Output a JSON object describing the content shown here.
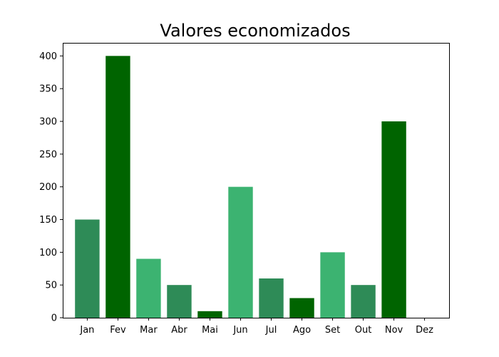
{
  "chart_data": {
    "type": "bar",
    "title": "Valores economizados",
    "xlabel": "",
    "ylabel": "",
    "categories": [
      "Jan",
      "Fev",
      "Mar",
      "Abr",
      "Mai",
      "Jun",
      "Jul",
      "Ago",
      "Set",
      "Out",
      "Nov",
      "Dez"
    ],
    "values": [
      150,
      400,
      90,
      50,
      10,
      200,
      60,
      30,
      100,
      50,
      300,
      0
    ],
    "colors": [
      "#2e8b57",
      "#006400",
      "#3cb371",
      "#2e8b57",
      "#006400",
      "#3cb371",
      "#2e8b57",
      "#006400",
      "#3cb371",
      "#2e8b57",
      "#006400",
      "#3cb371"
    ],
    "ylim": [
      0,
      420
    ],
    "yticks": [
      0,
      50,
      100,
      150,
      200,
      250,
      300,
      350,
      400
    ],
    "grid": false,
    "legend": "none"
  }
}
